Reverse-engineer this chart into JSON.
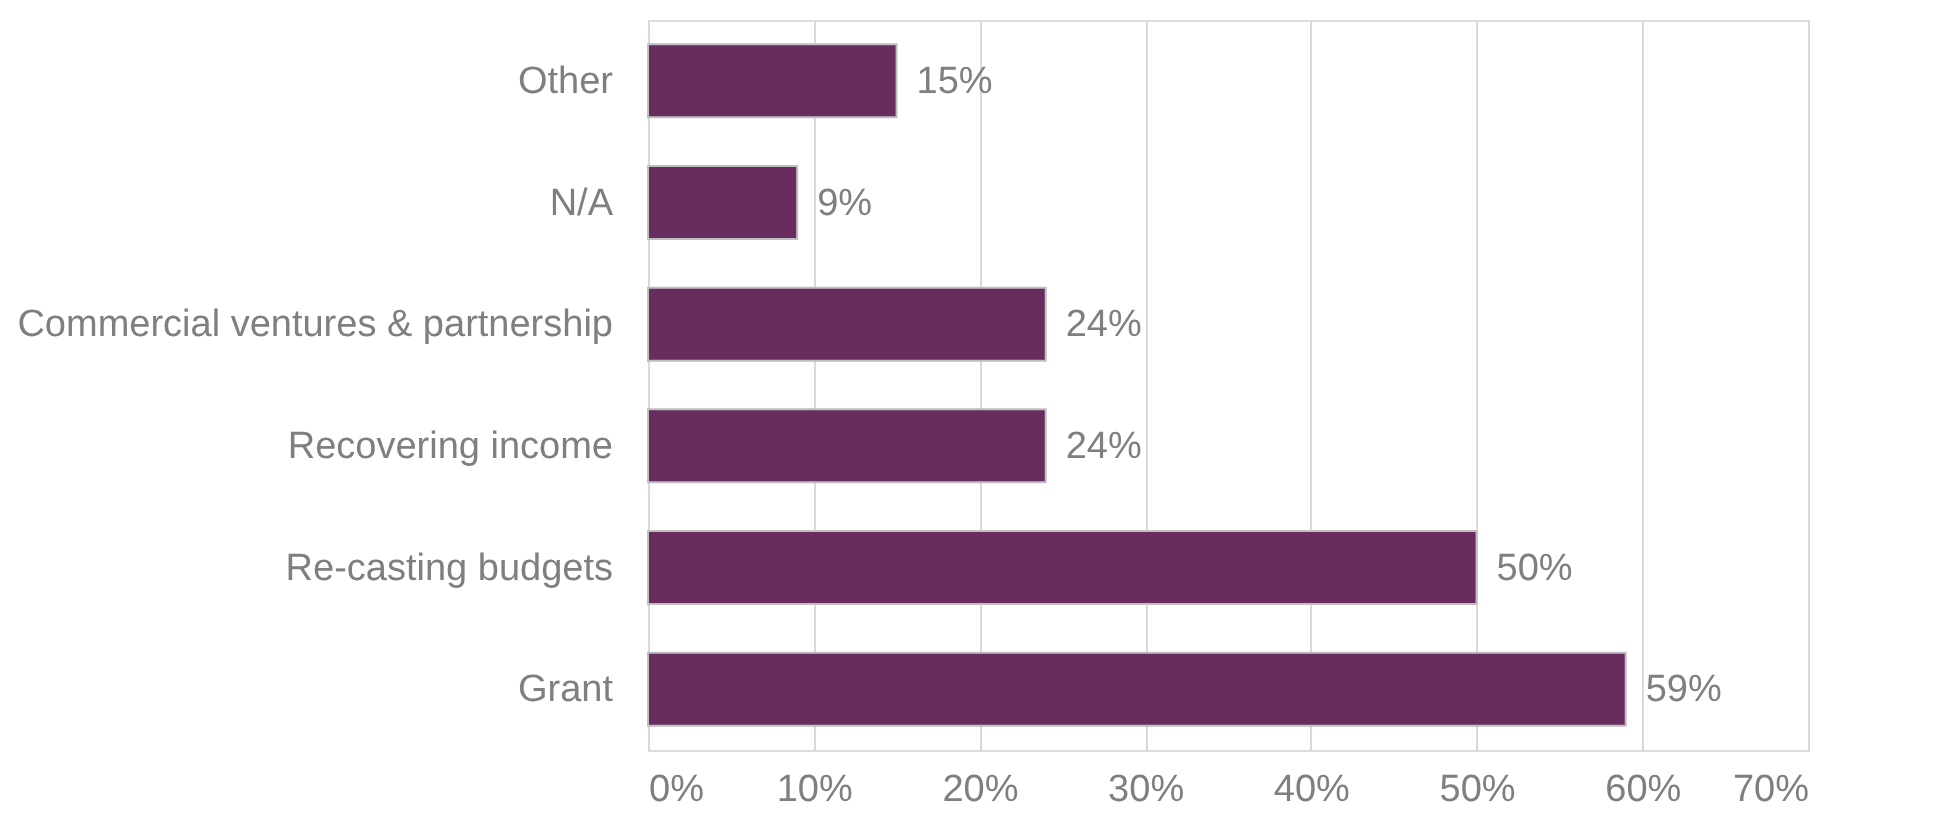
{
  "chart_data": {
    "type": "bar",
    "orientation": "horizontal",
    "categories": [
      "Other",
      "N/A",
      "Commercial ventures & partnership",
      "Recovering income",
      "Re-casting budgets",
      "Grant"
    ],
    "values": [
      15,
      9,
      24,
      24,
      50,
      59
    ],
    "value_labels": [
      "15%",
      "9%",
      "24%",
      "24%",
      "50%",
      "59%"
    ],
    "color": "#692c5f",
    "xlim": [
      0,
      70
    ],
    "xticks": [
      {
        "value": 0,
        "label": "0%"
      },
      {
        "value": 10,
        "label": "10%"
      },
      {
        "value": 20,
        "label": "20%"
      },
      {
        "value": 30,
        "label": "30%"
      },
      {
        "value": 40,
        "label": "40%"
      },
      {
        "value": 50,
        "label": "50%"
      },
      {
        "value": 60,
        "label": "60%"
      },
      {
        "value": 70,
        "label": "70%"
      }
    ],
    "grid": "x"
  }
}
